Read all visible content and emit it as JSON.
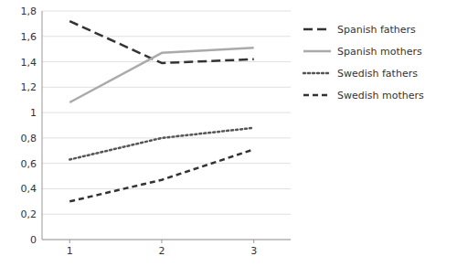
{
  "chart_data": {
    "type": "line",
    "x": [
      1,
      2,
      3
    ],
    "series": [
      {
        "name": "Spanish fathers",
        "color": "#333333",
        "line_style": "longdash",
        "values": [
          1.72,
          1.39,
          1.42
        ]
      },
      {
        "name": "Spanish mothers",
        "color": "#aaaaaa",
        "line_style": "solid",
        "values": [
          1.08,
          1.47,
          1.51
        ]
      },
      {
        "name": "Swedish fathers",
        "color": "#555555",
        "line_style": "dotted",
        "values": [
          0.63,
          0.8,
          0.88
        ]
      },
      {
        "name": "Swedish mothers",
        "color": "#333333",
        "line_style": "dashed",
        "values": [
          0.3,
          0.47,
          0.71
        ]
      }
    ],
    "xlim": [
      0.7,
      3.4
    ],
    "xticks": [
      1,
      2,
      3
    ],
    "ylim": [
      0,
      1.8
    ],
    "yticks": [
      0,
      {
        "value": 0.2,
        "label": "0,2"
      },
      {
        "value": 0.4,
        "label": "0,4"
      },
      {
        "value": 0.6,
        "label": "0,6"
      },
      {
        "value": 0.8,
        "label": "0,8"
      },
      1,
      {
        "value": 1.2,
        "label": "1,2"
      },
      {
        "value": 1.4,
        "label": "1,4"
      },
      {
        "value": 1.6,
        "label": "1,6"
      },
      {
        "value": 1.8,
        "label": "1,8"
      }
    ],
    "grid": true,
    "legend": "right"
  }
}
